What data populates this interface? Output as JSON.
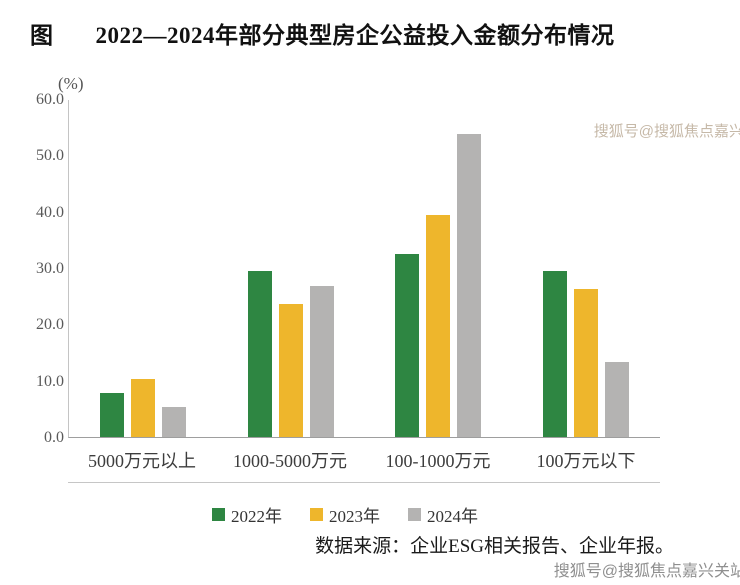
{
  "header": {
    "figure_label": "图",
    "title": "2022—2024年部分典型房企公益投入金额分布情况"
  },
  "chart_data": {
    "type": "bar",
    "title": "2022—2024年部分典型房企公益投入金额分布情况",
    "y_unit": "(%)",
    "xlabel": "",
    "ylabel": "(%)",
    "ylim": [
      0,
      60
    ],
    "ytick_step": 10,
    "grid": false,
    "legend_position": "bottom",
    "categories": [
      "5000万元以上",
      "1000-5000万元",
      "100-1000万元",
      "100万元以下"
    ],
    "series": [
      {
        "name": "2022年",
        "color": "#2e8642",
        "values": [
          7.9,
          29.5,
          32.4,
          29.5
        ]
      },
      {
        "name": "2023年",
        "color": "#eeb62c",
        "values": [
          10.3,
          23.6,
          39.4,
          26.2
        ]
      },
      {
        "name": "2024年",
        "color": "#b4b3b2",
        "values": [
          5.4,
          26.8,
          53.8,
          13.3
        ]
      }
    ]
  },
  "footer": {
    "source": "数据来源：企业ESG相关报告、企业年报。"
  },
  "watermarks": {
    "side": "搜狐号@搜狐焦点嘉兴关站",
    "bottom": "搜狐号@搜狐焦点嘉兴关站"
  }
}
